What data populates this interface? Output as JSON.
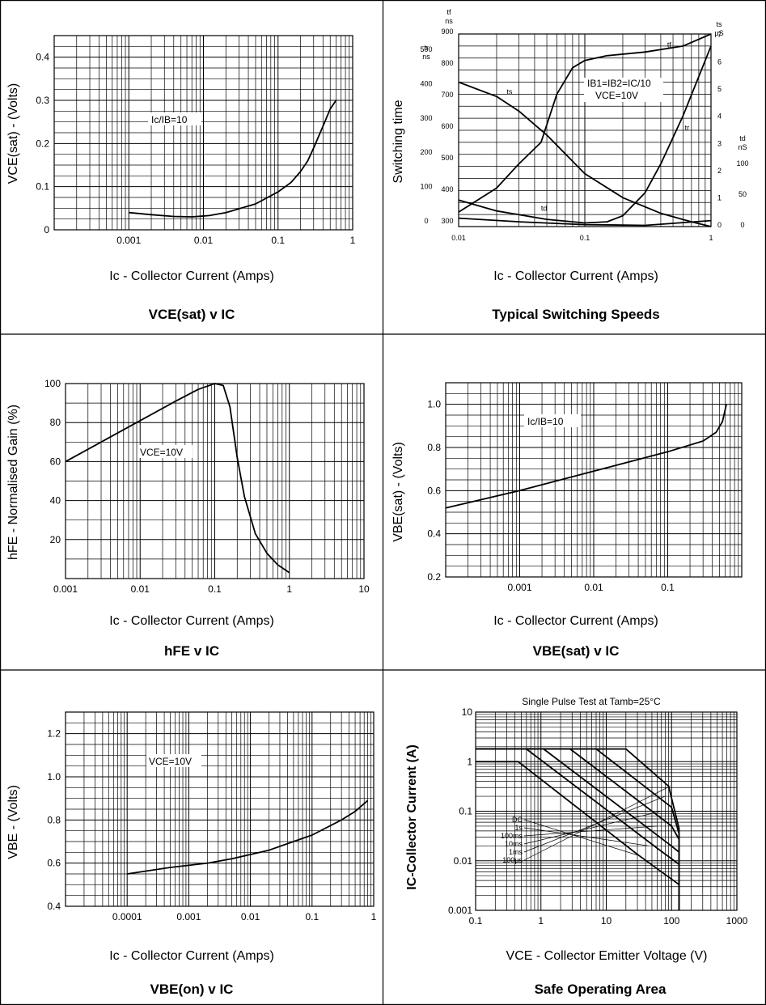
{
  "chart_data": [
    {
      "type": "line",
      "title": "VCE(sat) v IC",
      "xlabel": "Ic - Collector Current (Amps)",
      "ylabel": "VCE(sat) - (Volts)",
      "xscale": "log",
      "xlim": [
        0.0001,
        1
      ],
      "ylim": [
        0,
        0.45
      ],
      "xticks": [
        0.001,
        0.01,
        0.1,
        1
      ],
      "xtick_labels": [
        "0.001",
        "0.01",
        "0.1",
        "1"
      ],
      "yticks": [
        0,
        0.1,
        0.2,
        0.3,
        0.4
      ],
      "ytick_labels": [
        "0",
        "0.1",
        "0.2",
        "0.3",
        "0.4"
      ],
      "grid": true,
      "annotation": "Ic/IB=10",
      "series": [
        {
          "x": [
            0.001,
            0.002,
            0.004,
            0.007,
            0.012,
            0.02,
            0.05,
            0.1,
            0.15,
            0.2,
            0.25,
            0.3,
            0.4,
            0.5,
            0.6
          ],
          "y": [
            0.04,
            0.035,
            0.031,
            0.03,
            0.033,
            0.04,
            0.06,
            0.088,
            0.11,
            0.135,
            0.16,
            0.19,
            0.24,
            0.28,
            0.3
          ]
        }
      ]
    },
    {
      "type": "line",
      "title": "Typical Switching Speeds",
      "xlabel": "Ic - Collector Current (Amps)",
      "ylabel": "Switching time",
      "xscale": "log",
      "xlim": [
        0.01,
        1
      ],
      "ylim": [
        0,
        8
      ],
      "grid": true,
      "annotations": [
        "IB1=IB2=IC/10",
        "VCE=10V"
      ],
      "axes": {
        "tr": {
          "header": [
            "tr",
            "ns"
          ],
          "ticks": [
            "500",
            "400",
            "300",
            "200",
            "100",
            "0"
          ]
        },
        "tf": {
          "header": [
            "tf",
            "ns"
          ],
          "ticks": [
            "900",
            "800",
            "700",
            "600",
            "500",
            "400",
            "300"
          ]
        },
        "ts": {
          "header": [
            "ts",
            "µS"
          ],
          "ticks": [
            "7",
            "6",
            "5",
            "4",
            "3",
            "2",
            "1",
            "0"
          ]
        },
        "td": {
          "header": [
            "td",
            "nS"
          ],
          "ticks": [
            "100",
            "50",
            "0"
          ]
        }
      },
      "xticks": [
        0.01,
        0.1,
        1
      ],
      "xtick_labels": [
        "0.01",
        "0.1",
        "1"
      ],
      "series": [
        {
          "name": "tf",
          "x": [
            0.01,
            0.02,
            0.03,
            0.045,
            0.06,
            0.08,
            0.1,
            0.15,
            0.3,
            0.6,
            1
          ],
          "y": [
            0.6,
            1.6,
            2.6,
            3.5,
            5.5,
            6.6,
            6.9,
            7.1,
            7.25,
            7.5,
            8.0
          ]
        },
        {
          "name": "ts",
          "x": [
            0.01,
            0.02,
            0.03,
            0.05,
            0.1,
            0.2,
            0.4,
            0.7,
            1
          ],
          "y": [
            6.0,
            5.4,
            4.8,
            3.8,
            2.2,
            1.2,
            0.55,
            0.2,
            0.0
          ]
        },
        {
          "name": "tr",
          "x": [
            0.01,
            0.02,
            0.05,
            0.1,
            0.15,
            0.2,
            0.3,
            0.4,
            0.6,
            1
          ],
          "y": [
            1.1,
            0.65,
            0.3,
            0.15,
            0.2,
            0.45,
            1.4,
            2.6,
            4.6,
            7.5
          ]
        },
        {
          "name": "td",
          "x": [
            0.01,
            0.03,
            0.1,
            0.3,
            1
          ],
          "y": [
            0.35,
            0.2,
            0.08,
            0.05,
            0.25
          ]
        }
      ]
    },
    {
      "type": "line",
      "title": "hFE v IC",
      "xlabel": "Ic - Collector Current (Amps)",
      "ylabel": "hFE - Normalised Gain (%)",
      "xscale": "log",
      "xlim": [
        0.001,
        10
      ],
      "ylim": [
        0,
        100
      ],
      "xticks": [
        0.001,
        0.01,
        0.1,
        1,
        10
      ],
      "xtick_labels": [
        "0.001",
        "0.01",
        "0.1",
        "1",
        "10"
      ],
      "yticks": [
        20,
        40,
        60,
        80,
        100
      ],
      "ytick_labels": [
        "20",
        "40",
        "60",
        "80",
        "100"
      ],
      "grid": true,
      "annotation": "VCE=10V",
      "series": [
        {
          "x": [
            0.001,
            0.003,
            0.01,
            0.03,
            0.06,
            0.1,
            0.13,
            0.16,
            0.2,
            0.25,
            0.35,
            0.5,
            0.7,
            1
          ],
          "y": [
            60,
            70,
            81,
            91,
            97,
            100,
            99,
            88,
            62,
            42,
            23,
            13,
            7,
            3
          ]
        }
      ]
    },
    {
      "type": "line",
      "title": "VBE(sat) v IC",
      "xlabel": "Ic - Collector Current (Amps)",
      "ylabel": "VBE(sat) - (Volts)",
      "xscale": "log",
      "xlim": [
        0.0001,
        1
      ],
      "ylim": [
        0.2,
        1.1
      ],
      "xticks": [
        0.001,
        0.01,
        0.1,
        1
      ],
      "xtick_labels": [
        "0.001",
        "0.01",
        "0.1",
        ""
      ],
      "yticks": [
        0.2,
        0.4,
        0.6,
        0.8,
        1.0
      ],
      "ytick_labels": [
        "0.2",
        "0.4",
        "0.6",
        "0.8",
        "1.0"
      ],
      "grid": true,
      "annotation": "Ic/IB=10",
      "series": [
        {
          "x": [
            0.0001,
            0.001,
            0.01,
            0.1,
            0.3,
            0.45,
            0.55,
            0.62
          ],
          "y": [
            0.52,
            0.6,
            0.69,
            0.78,
            0.83,
            0.87,
            0.92,
            1.0
          ]
        }
      ]
    },
    {
      "type": "line",
      "title": "VBE(on) v IC",
      "xlabel": "Ic - Collector Current (Amps)",
      "ylabel": "VBE - (Volts)",
      "xscale": "log",
      "xlim": [
        1e-05,
        1
      ],
      "ylim": [
        0.4,
        1.3
      ],
      "xticks": [
        0.0001,
        0.001,
        0.01,
        0.1,
        1
      ],
      "xtick_labels": [
        "0.0001",
        "0.001",
        "0.01",
        "0.1",
        "1"
      ],
      "yticks": [
        0.4,
        0.6,
        0.8,
        1.0,
        1.2
      ],
      "ytick_labels": [
        "0.4",
        "0.6",
        "0.8",
        "1.0",
        "1.2"
      ],
      "grid": true,
      "annotation": "VCE=10V",
      "series": [
        {
          "x": [
            0.0001,
            0.0005,
            0.002,
            0.005,
            0.02,
            0.05,
            0.1,
            0.3,
            0.5,
            0.8
          ],
          "y": [
            0.55,
            0.58,
            0.6,
            0.62,
            0.66,
            0.7,
            0.73,
            0.8,
            0.84,
            0.89
          ]
        }
      ]
    },
    {
      "type": "line",
      "title": "Safe Operating Area",
      "subtitle": "Single Pulse Test at Tamb=25°C",
      "xlabel": "VCE - Collector Emitter Voltage (V)",
      "ylabel": "IC-Collector Current (A)",
      "xscale": "log",
      "yscale": "log",
      "xlim": [
        0.1,
        1000
      ],
      "ylim": [
        0.001,
        10
      ],
      "xticks": [
        0.1,
        1,
        10,
        100,
        1000
      ],
      "xtick_labels": [
        "0.1",
        "1",
        "10",
        "100",
        "1000"
      ],
      "yticks": [
        0.001,
        0.01,
        0.1,
        1,
        10
      ],
      "ytick_labels": [
        "0.001",
        "0.01",
        "0.1",
        "1",
        "10"
      ],
      "grid": true,
      "series": [
        {
          "name": "DC",
          "x": [
            0.1,
            0.45,
            30,
            130,
            130
          ],
          "y": [
            1,
            1,
            0.0135,
            0.0033,
            0.001
          ]
        },
        {
          "name": "1s",
          "x": [
            0.1,
            0.6,
            60,
            130,
            130
          ],
          "y": [
            1.8,
            1.8,
            0.018,
            0.0085,
            0.001
          ]
        },
        {
          "name": "100ms",
          "x": [
            0.1,
            1.1,
            90,
            130,
            130
          ],
          "y": [
            1.8,
            1.8,
            0.022,
            0.015,
            0.001
          ]
        },
        {
          "name": "10ms",
          "x": [
            0.1,
            2.8,
            100,
            130,
            130
          ],
          "y": [
            1.8,
            1.8,
            0.05,
            0.027,
            0.001
          ]
        },
        {
          "name": "1ms",
          "x": [
            0.1,
            7,
            100,
            130,
            130
          ],
          "y": [
            1.8,
            1.8,
            0.12,
            0.035,
            0.001
          ]
        },
        {
          "name": "100µs",
          "x": [
            0.1,
            20,
            90,
            130,
            130
          ],
          "y": [
            1.8,
            1.8,
            0.32,
            0.045,
            0.001
          ]
        }
      ]
    }
  ]
}
